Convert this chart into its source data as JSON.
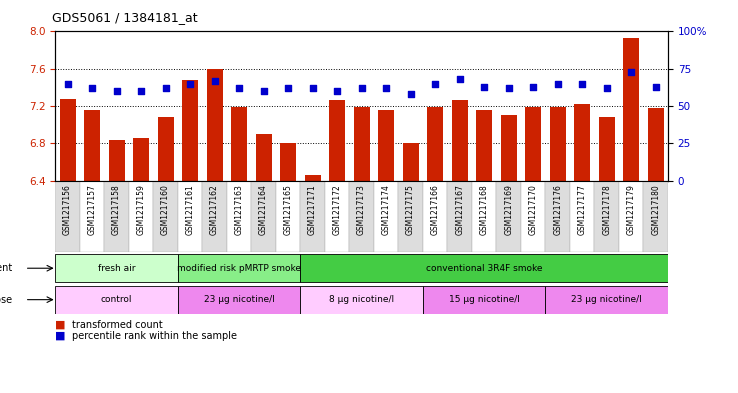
{
  "title": "GDS5061 / 1384181_at",
  "samples": [
    "GSM1217156",
    "GSM1217157",
    "GSM1217158",
    "GSM1217159",
    "GSM1217160",
    "GSM1217161",
    "GSM1217162",
    "GSM1217163",
    "GSM1217164",
    "GSM1217165",
    "GSM1217171",
    "GSM1217172",
    "GSM1217173",
    "GSM1217174",
    "GSM1217175",
    "GSM1217166",
    "GSM1217167",
    "GSM1217168",
    "GSM1217169",
    "GSM1217170",
    "GSM1217176",
    "GSM1217177",
    "GSM1217178",
    "GSM1217179",
    "GSM1217180"
  ],
  "bar_values": [
    7.28,
    7.16,
    6.84,
    6.86,
    7.08,
    7.48,
    7.6,
    7.19,
    6.9,
    6.8,
    6.46,
    7.27,
    7.19,
    7.16,
    6.8,
    7.19,
    7.27,
    7.16,
    7.1,
    7.19,
    7.19,
    7.22,
    7.08,
    7.93,
    7.18
  ],
  "percentile_values": [
    65,
    62,
    60,
    60,
    62,
    65,
    67,
    62,
    60,
    62,
    62,
    60,
    62,
    62,
    58,
    65,
    68,
    63,
    62,
    63,
    65,
    65,
    62,
    73,
    63
  ],
  "ylim_left": [
    6.4,
    8.0
  ],
  "ylim_right": [
    0,
    100
  ],
  "yticks_left": [
    6.4,
    6.8,
    7.2,
    7.6,
    8.0
  ],
  "yticks_right": [
    0,
    25,
    50,
    75,
    100
  ],
  "bar_color": "#cc2200",
  "dot_color": "#0000cc",
  "agent_groups": [
    {
      "label": "fresh air",
      "start": 0,
      "end": 5,
      "color": "#ccffcc"
    },
    {
      "label": "modified risk pMRTP smoke",
      "start": 5,
      "end": 10,
      "color": "#88ee88"
    },
    {
      "label": "conventional 3R4F smoke",
      "start": 10,
      "end": 25,
      "color": "#44cc44"
    }
  ],
  "dose_groups": [
    {
      "label": "control",
      "start": 0,
      "end": 5,
      "color": "#ffccff"
    },
    {
      "label": "23 μg nicotine/l",
      "start": 5,
      "end": 10,
      "color": "#ee88ee"
    },
    {
      "label": "8 μg nicotine/l",
      "start": 10,
      "end": 15,
      "color": "#ffccff"
    },
    {
      "label": "15 μg nicotine/l",
      "start": 15,
      "end": 20,
      "color": "#ee88ee"
    },
    {
      "label": "23 μg nicotine/l",
      "start": 20,
      "end": 25,
      "color": "#ee88ee"
    }
  ],
  "legend_items": [
    {
      "label": "transformed count",
      "color": "#cc2200"
    },
    {
      "label": "percentile rank within the sample",
      "color": "#0000cc"
    }
  ],
  "xtick_bg_colors": [
    "#dddddd",
    "#ffffff"
  ]
}
